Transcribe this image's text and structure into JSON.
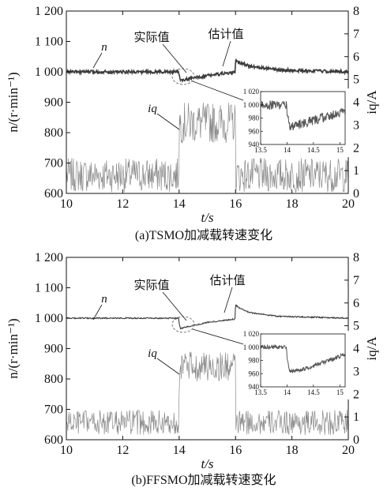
{
  "chart_data": [
    {
      "type": "line",
      "caption": "(a)TSMO加减载转速变化",
      "xlabel": "t/s",
      "ylabel_left": "n/(r·min⁻¹)",
      "ylabel_right": "iq/A",
      "xlim": [
        10,
        20
      ],
      "ylim_left": [
        600,
        1200
      ],
      "ylim_right": [
        0,
        8
      ],
      "x_ticks": [
        "10",
        "12",
        "14",
        "16",
        "18",
        "20"
      ],
      "y_ticks_left": [
        "600",
        "700",
        "800",
        "900",
        "1 000",
        "1 100",
        "1 200"
      ],
      "y_ticks_right": [
        "0",
        "1",
        "2",
        "3",
        "4",
        "5",
        "6",
        "7",
        "8"
      ],
      "annotations": {
        "speed": "n",
        "actual": "实际值",
        "estimated": "估计值",
        "current": "iq"
      },
      "series": [
        {
          "key": "speed",
          "x": [
            10,
            13.99,
            14.0,
            14.05,
            14.3,
            15.0,
            15.99,
            16.0,
            16.1,
            16.5,
            17.5,
            20
          ],
          "y": [
            1000,
            1000,
            990,
            970,
            976,
            988,
            998,
            1040,
            1032,
            1018,
            1006,
            1000
          ],
          "ripple": 5
        },
        {
          "key": "current",
          "x": [
            10,
            13.99,
            14.0,
            16.0,
            16.01,
            20
          ],
          "y": [
            0.8,
            0.8,
            3.1,
            3.1,
            0.8,
            0.8
          ],
          "ripple": 0.75
        }
      ],
      "inset": {
        "xlim": [
          13.5,
          15.1
        ],
        "ylim": [
          940,
          1020
        ],
        "x_ticks": [
          "13.5",
          "14",
          "14.5",
          "15"
        ],
        "y_ticks": [
          "940",
          "960",
          "980",
          "1 000",
          "1 020"
        ],
        "series": {
          "x": [
            13.5,
            13.99,
            14.0,
            14.05,
            14.3,
            15.0,
            15.1
          ],
          "y": [
            1000,
            1000,
            988,
            966,
            972,
            988,
            990
          ],
          "ripple": 7
        }
      }
    },
    {
      "type": "line",
      "caption": "(b)FFSMO加减载转速变化",
      "xlabel": "t/s",
      "ylabel_left": "n/(r·min⁻¹)",
      "ylabel_right": "iq/A",
      "xlim": [
        10,
        20
      ],
      "ylim_left": [
        600,
        1200
      ],
      "ylim_right": [
        0,
        8
      ],
      "x_ticks": [
        "10",
        "12",
        "14",
        "16",
        "18",
        "20"
      ],
      "y_ticks_left": [
        "600",
        "700",
        "800",
        "900",
        "1 000",
        "1 100",
        "1 200"
      ],
      "y_ticks_right": [
        "0",
        "1",
        "2",
        "3",
        "4",
        "5",
        "6",
        "7",
        "8"
      ],
      "annotations": {
        "speed": "n",
        "actual": "实际值",
        "estimated": "估计值",
        "current": "iq"
      },
      "series": [
        {
          "key": "speed",
          "x": [
            10,
            13.99,
            14.0,
            14.05,
            14.3,
            15.0,
            15.99,
            16.0,
            16.1,
            16.5,
            17.5,
            20
          ],
          "y": [
            1000,
            1000,
            985,
            966,
            972,
            986,
            997,
            1045,
            1035,
            1018,
            1006,
            1000
          ],
          "ripple": 2
        },
        {
          "key": "current",
          "x": [
            10,
            13.99,
            14.0,
            16.0,
            16.01,
            20
          ],
          "y": [
            0.75,
            0.75,
            3.2,
            3.2,
            0.75,
            0.75
          ],
          "ripple": 0.55
        }
      ],
      "inset": {
        "xlim": [
          13.5,
          15.1
        ],
        "ylim": [
          940,
          1020
        ],
        "x_ticks": [
          "13.5",
          "14",
          "14.5",
          "15"
        ],
        "y_ticks": [
          "940",
          "960",
          "980",
          "1 000",
          "1 020"
        ],
        "series": {
          "x": [
            13.5,
            13.99,
            14.0,
            14.05,
            14.3,
            15.0,
            15.1
          ],
          "y": [
            1000,
            1000,
            985,
            963,
            966,
            986,
            989
          ],
          "ripple": 3
        }
      }
    }
  ]
}
